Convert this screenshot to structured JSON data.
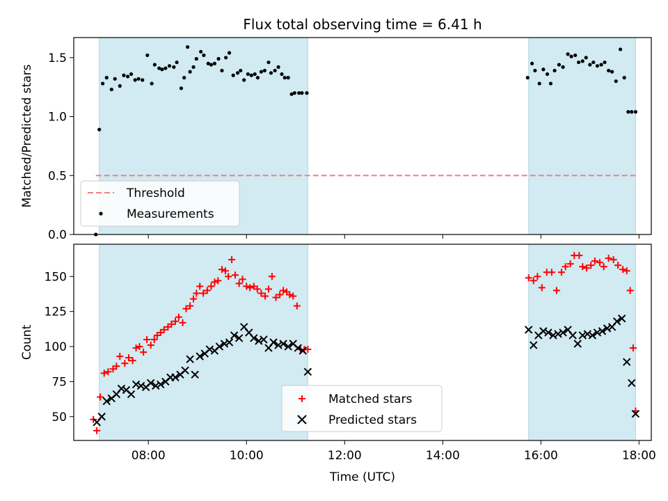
{
  "figure": {
    "title": "Flux total observing time = 6.41 h"
  },
  "chart_data": [
    {
      "type": "scatter",
      "ylabel": "Matched/Predicted stars",
      "ylim": [
        0,
        1.67
      ],
      "xlim": [
        6.48,
        18.25
      ],
      "yticks": [
        "0.0",
        "0.5",
        "1.0",
        "1.5"
      ],
      "ytick_values": [
        0,
        0.5,
        1.0,
        1.5
      ],
      "shaded_intervals": [
        [
          7.0,
          11.25
        ],
        [
          15.75,
          17.93
        ]
      ],
      "shade_color": "#add8e6",
      "threshold": {
        "name": "Threshold",
        "value": 0.5,
        "x_range": [
          6.93,
          17.93
        ],
        "color": "#f08080"
      },
      "legend": {
        "position": "lower-left",
        "entries": [
          "Threshold",
          "Measurements"
        ]
      },
      "series": [
        {
          "name": "Measurements",
          "marker": "dot",
          "color": "#000000",
          "x": [
            6.93,
            7.0,
            7.07,
            7.15,
            7.25,
            7.32,
            7.42,
            7.5,
            7.58,
            7.65,
            7.73,
            7.8,
            7.88,
            7.98,
            8.07,
            8.13,
            8.22,
            8.28,
            8.35,
            8.43,
            8.52,
            8.58,
            8.67,
            8.73,
            8.8,
            8.85,
            8.92,
            8.98,
            9.07,
            9.13,
            9.22,
            9.28,
            9.35,
            9.43,
            9.5,
            9.58,
            9.65,
            9.73,
            9.82,
            9.88,
            9.95,
            10.03,
            10.1,
            10.17,
            10.23,
            10.3,
            10.37,
            10.45,
            10.5,
            10.58,
            10.65,
            10.72,
            10.78,
            10.85,
            10.92,
            10.98,
            11.07,
            11.13,
            11.23,
            15.73,
            15.82,
            15.88,
            15.97,
            16.05,
            16.13,
            16.2,
            16.28,
            16.37,
            16.45,
            16.55,
            16.62,
            16.7,
            16.77,
            16.85,
            16.92,
            17.0,
            17.07,
            17.15,
            17.23,
            17.3,
            17.38,
            17.45,
            17.53,
            17.62,
            17.7,
            17.78,
            17.85,
            17.93
          ],
          "y": [
            0.0,
            0.89,
            1.28,
            1.33,
            1.23,
            1.32,
            1.26,
            1.35,
            1.34,
            1.36,
            1.31,
            1.32,
            1.31,
            1.52,
            1.28,
            1.44,
            1.41,
            1.4,
            1.41,
            1.43,
            1.42,
            1.46,
            1.24,
            1.33,
            1.59,
            1.38,
            1.42,
            1.49,
            1.55,
            1.52,
            1.45,
            1.44,
            1.45,
            1.49,
            1.39,
            1.5,
            1.54,
            1.35,
            1.37,
            1.39,
            1.31,
            1.36,
            1.35,
            1.36,
            1.33,
            1.38,
            1.39,
            1.46,
            1.37,
            1.39,
            1.42,
            1.36,
            1.33,
            1.33,
            1.19,
            1.2,
            1.2,
            1.2,
            1.2,
            1.33,
            1.45,
            1.39,
            1.28,
            1.4,
            1.36,
            1.28,
            1.39,
            1.44,
            1.42,
            1.53,
            1.51,
            1.52,
            1.46,
            1.47,
            1.5,
            1.44,
            1.46,
            1.43,
            1.44,
            1.46,
            1.39,
            1.38,
            1.3,
            1.57,
            1.33,
            1.04,
            1.04,
            1.04
          ]
        }
      ]
    },
    {
      "type": "scatter",
      "ylabel": "Count",
      "xlabel": "Time (UTC)",
      "ylim": [
        33,
        173
      ],
      "xlim": [
        6.48,
        18.25
      ],
      "yticks": [
        "50",
        "75",
        "100",
        "125",
        "150"
      ],
      "ytick_values": [
        50,
        75,
        100,
        125,
        150
      ],
      "xticks": [
        "08:00",
        "10:00",
        "12:00",
        "14:00",
        "16:00",
        "18:00"
      ],
      "xtick_values": [
        8,
        10,
        12,
        14,
        16,
        18
      ],
      "shaded_intervals": [
        [
          7.0,
          11.25
        ],
        [
          15.75,
          17.93
        ]
      ],
      "shade_color": "#add8e6",
      "legend": {
        "position": "lower-center",
        "entries": [
          "Matched stars",
          "Predicted stars"
        ]
      },
      "series": [
        {
          "name": "Matched stars",
          "marker": "plus",
          "color": "#ff0000",
          "x": [
            6.88,
            6.95,
            7.02,
            7.1,
            7.18,
            7.28,
            7.35,
            7.42,
            7.52,
            7.6,
            7.68,
            7.75,
            7.82,
            7.9,
            7.97,
            8.05,
            8.12,
            8.18,
            8.25,
            8.32,
            8.4,
            8.47,
            8.55,
            8.62,
            8.7,
            8.77,
            8.85,
            8.92,
            8.98,
            9.05,
            9.12,
            9.2,
            9.28,
            9.35,
            9.42,
            9.5,
            9.57,
            9.63,
            9.7,
            9.77,
            9.85,
            9.92,
            10.0,
            10.07,
            10.15,
            10.22,
            10.3,
            10.38,
            10.45,
            10.52,
            10.6,
            10.68,
            10.75,
            10.82,
            10.88,
            10.95,
            11.03,
            11.1,
            11.18,
            11.25,
            15.75,
            15.85,
            15.93,
            16.02,
            16.12,
            16.22,
            16.32,
            16.42,
            16.5,
            16.6,
            16.68,
            16.78,
            16.85,
            16.93,
            17.02,
            17.1,
            17.2,
            17.28,
            17.38,
            17.48,
            17.57,
            17.67,
            17.75,
            17.82,
            17.88,
            17.93
          ],
          "y": [
            48,
            40,
            64,
            81,
            82,
            84,
            86,
            93,
            88,
            92,
            90,
            99,
            100,
            96,
            105,
            101,
            105,
            108,
            110,
            112,
            114,
            116,
            118,
            121,
            117,
            127,
            129,
            134,
            138,
            143,
            138,
            140,
            143,
            146,
            147,
            155,
            154,
            150,
            162,
            151,
            145,
            148,
            143,
            142,
            143,
            141,
            138,
            136,
            141,
            150,
            135,
            137,
            140,
            139,
            137,
            136,
            129,
            98,
            98,
            98,
            149,
            147,
            150,
            142,
            153,
            153,
            140,
            153,
            157,
            159,
            165,
            165,
            157,
            156,
            158,
            161,
            160,
            157,
            163,
            162,
            158,
            155,
            154,
            140,
            99,
            54
          ]
        },
        {
          "name": "Predicted stars",
          "marker": "x",
          "color": "#000000",
          "x": [
            6.95,
            7.05,
            7.15,
            7.25,
            7.35,
            7.45,
            7.55,
            7.65,
            7.75,
            7.85,
            7.95,
            8.05,
            8.15,
            8.25,
            8.35,
            8.45,
            8.55,
            8.65,
            8.75,
            8.85,
            8.95,
            9.05,
            9.15,
            9.25,
            9.35,
            9.45,
            9.55,
            9.65,
            9.75,
            9.85,
            9.95,
            10.05,
            10.15,
            10.25,
            10.35,
            10.45,
            10.55,
            10.65,
            10.75,
            10.85,
            10.95,
            11.05,
            11.15,
            11.25,
            15.75,
            15.85,
            15.95,
            16.05,
            16.15,
            16.25,
            16.35,
            16.45,
            16.55,
            16.65,
            16.75,
            16.85,
            16.95,
            17.05,
            17.15,
            17.25,
            17.35,
            17.45,
            17.55,
            17.65,
            17.75,
            17.85,
            17.93
          ],
          "y": [
            46,
            50,
            61,
            63,
            66,
            70,
            69,
            66,
            73,
            72,
            71,
            74,
            72,
            73,
            75,
            78,
            78,
            80,
            83,
            91,
            80,
            93,
            95,
            98,
            97,
            100,
            102,
            103,
            108,
            106,
            114,
            110,
            106,
            104,
            105,
            99,
            103,
            101,
            102,
            100,
            102,
            99,
            97,
            82,
            112,
            101,
            108,
            111,
            110,
            108,
            109,
            110,
            112,
            108,
            102,
            108,
            109,
            108,
            110,
            111,
            113,
            114,
            118,
            120,
            89,
            74,
            52
          ]
        }
      ]
    }
  ]
}
